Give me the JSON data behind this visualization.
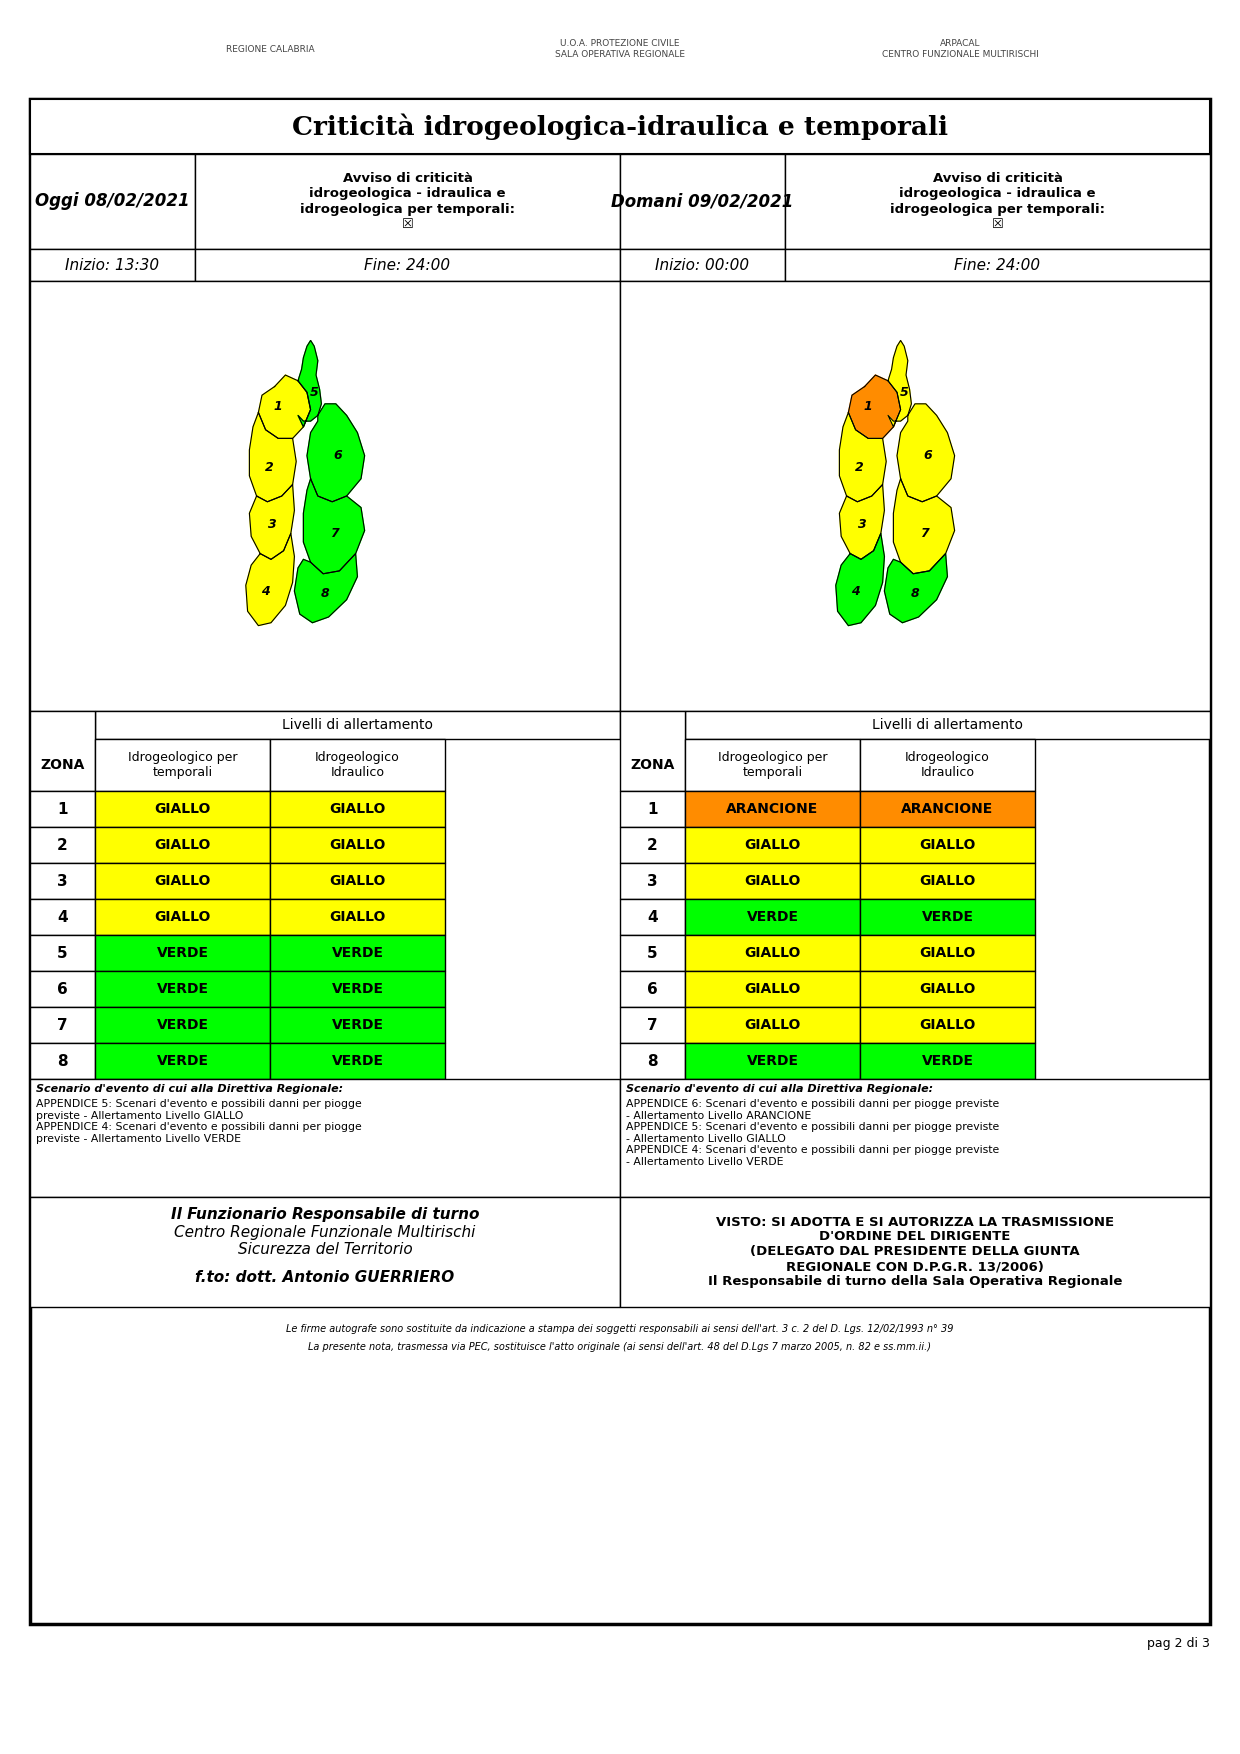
{
  "title": "Criticità idrogeologica-idraulica e temporali",
  "oggi_date": "Oggi 08/02/2021",
  "domani_date": "Domani 09/02/2021",
  "oggi_avviso": "Avviso di criticità\nidrogeologica - idraulica e\nidrogeologica per temporali:\n☒",
  "domani_avviso": "Avviso di criticità\nidrogeologica - idraulica e\nidrogeologica per temporali:\n☒",
  "oggi_inizio": "Inizio: 13:30",
  "oggi_fine": "Fine: 24:00",
  "domani_inizio": "Inizio: 00:00",
  "domani_fine": "Fine: 24:00",
  "livelli_header": "Livelli di allertamento",
  "zona_label": "ZONA",
  "col1_label": "Idrogeologico per\ntemporali",
  "col2_label": "Idrogeologico\nIdraulico",
  "zones": [
    1,
    2,
    3,
    4,
    5,
    6,
    7,
    8
  ],
  "oggi_col1": [
    "GIALLO",
    "GIALLO",
    "GIALLO",
    "GIALLO",
    "VERDE",
    "VERDE",
    "VERDE",
    "VERDE"
  ],
  "oggi_col2": [
    "GIALLO",
    "GIALLO",
    "GIALLO",
    "GIALLO",
    "VERDE",
    "VERDE",
    "VERDE",
    "VERDE"
  ],
  "domani_col1": [
    "ARANCIONE",
    "GIALLO",
    "GIALLO",
    "VERDE",
    "GIALLO",
    "GIALLO",
    "GIALLO",
    "VERDE"
  ],
  "domani_col2": [
    "ARANCIONE",
    "GIALLO",
    "GIALLO",
    "VERDE",
    "GIALLO",
    "GIALLO",
    "GIALLO",
    "VERDE"
  ],
  "color_giallo": "#FFFF00",
  "color_verde": "#00FF00",
  "color_arancione": "#FF8C00",
  "scenario_oggi_title": "Scenario d'evento di cui alla Direttiva Regionale:",
  "scenario_oggi_body": "APPENDICE 5: Scenari d'evento e possibili danni per piogge\npreviste - Allertamento Livello GIALLO\nAPPENDICE 4: Scenari d'evento e possibili danni per piogge\npreviste - Allertamento Livello VERDE",
  "scenario_domani_title": "Scenario d'evento di cui alla Direttiva Regionale:",
  "scenario_domani_body": "APPENDICE 6: Scenari d'evento e possibili danni per piogge previste\n- Allertamento Livello ARANCIONE\nAPPENDICE 5: Scenari d'evento e possibili danni per piogge previste\n- Allertamento Livello GIALLO\nAPPENDICE 4: Scenari d'evento e possibili danni per piogge previste\n- Allertamento Livello VERDE",
  "footer_left_bold": "Il Funzionario Responsabile di turno",
  "footer_left_normal": "Centro Regionale Funzionale Multirischi\nSicurezza del Territorio",
  "footer_left_italic": "f.to: dott. Antonio GUERRIERO",
  "footer_right": "VISTO: SI ADOTTA E SI AUTORIZZA LA TRASMISSIONE\nD'ORDINE DEL DIRIGENTE\n(DELEGATO DAL PRESIDENTE DELLA GIUNTA\nREGIONALE CON D.P.G.R. 13/2006)\nIl Responsabile di turno della Sala Operativa Regionale",
  "footnote1": "Le firme autografe sono sostituite da indicazione a stampa dei soggetti responsabili ai sensi dell'art. 3 c. 2 del D. Lgs. 12/02/1993 n° 39",
  "footnote2": "La presente nota, trasmessa via PEC, sostituisce l'atto originale (ai sensi dell'art. 48 del D.Lgs 7 marzo 2005, n. 82 e ss.mm.ii.)",
  "page_num": "pag 2 di 3",
  "bg_color": "#FFFFFF"
}
